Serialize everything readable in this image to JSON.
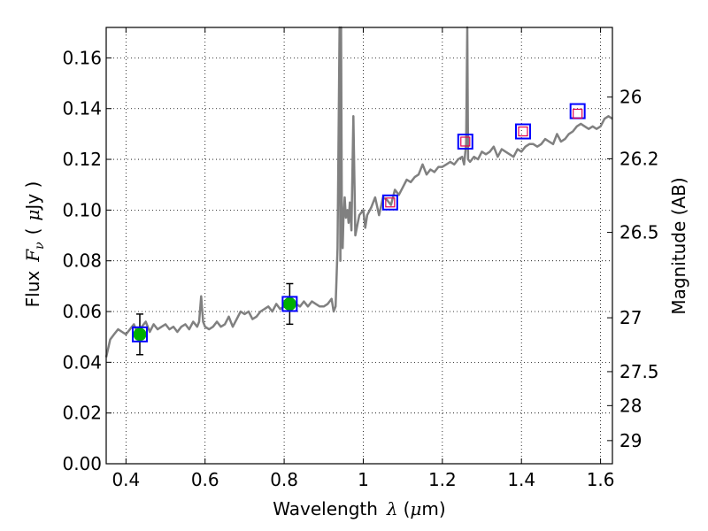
{
  "chart_data": {
    "type": "line",
    "xlabel": "Wavelength",
    "xlabel_symbol": "λ",
    "xlabel_unit_open": "(",
    "xlabel_unit_mu": "μ",
    "xlabel_unit_close": "m)",
    "ylabel": "Flux",
    "ylabel_symbol": "F",
    "ylabel_subscript": "ν",
    "ylabel_unit_open": "(",
    "ylabel_unit_mu": "μ",
    "ylabel_unit_close": "Jy )",
    "y2label": "Magnitude (AB)",
    "xlim": [
      0.35,
      1.63
    ],
    "ylim": [
      0.0,
      0.172
    ],
    "grid": true,
    "colors": {
      "spectrum": "#808080",
      "photometry": "#00b000",
      "model_box": "#0000ff",
      "observed_box": "#e0004e"
    },
    "xticks": [
      {
        "value": 0.4,
        "label": "0.4"
      },
      {
        "value": 0.6,
        "label": "0.6"
      },
      {
        "value": 0.8,
        "label": "0.8"
      },
      {
        "value": 1.0,
        "label": "1"
      },
      {
        "value": 1.2,
        "label": "1.2"
      },
      {
        "value": 1.4,
        "label": "1.4"
      },
      {
        "value": 1.6,
        "label": "1.6"
      }
    ],
    "yticks": [
      {
        "value": 0.0,
        "label": "0.00"
      },
      {
        "value": 0.02,
        "label": "0.02"
      },
      {
        "value": 0.04,
        "label": "0.04"
      },
      {
        "value": 0.06,
        "label": "0.06"
      },
      {
        "value": 0.08,
        "label": "0.08"
      },
      {
        "value": 0.1,
        "label": "0.10"
      },
      {
        "value": 0.12,
        "label": "0.12"
      },
      {
        "value": 0.14,
        "label": "0.14"
      },
      {
        "value": 0.16,
        "label": "0.16"
      }
    ],
    "magnitude_ticks": [
      {
        "value": 26.0,
        "label": "26"
      },
      {
        "value": 26.2,
        "label": "26.2"
      },
      {
        "value": 26.5,
        "label": "26.5"
      },
      {
        "value": 27.0,
        "label": "27"
      },
      {
        "value": 27.5,
        "label": "27.5"
      },
      {
        "value": 28.0,
        "label": "28"
      },
      {
        "value": 29.0,
        "label": "29"
      }
    ],
    "series": [
      {
        "name": "spectrum",
        "x": [
          0.35,
          0.36,
          0.37,
          0.38,
          0.39,
          0.4,
          0.41,
          0.42,
          0.43,
          0.44,
          0.45,
          0.46,
          0.47,
          0.48,
          0.49,
          0.5,
          0.51,
          0.52,
          0.53,
          0.54,
          0.55,
          0.56,
          0.57,
          0.58,
          0.585,
          0.59,
          0.595,
          0.6,
          0.61,
          0.62,
          0.63,
          0.64,
          0.65,
          0.66,
          0.67,
          0.68,
          0.69,
          0.7,
          0.71,
          0.72,
          0.73,
          0.74,
          0.75,
          0.76,
          0.77,
          0.78,
          0.79,
          0.8,
          0.81,
          0.82,
          0.83,
          0.84,
          0.85,
          0.86,
          0.87,
          0.88,
          0.89,
          0.9,
          0.91,
          0.92,
          0.925,
          0.93,
          0.935,
          0.94,
          0.942,
          0.944,
          0.946,
          0.948,
          0.95,
          0.953,
          0.956,
          0.96,
          0.963,
          0.966,
          0.97,
          0.975,
          0.98,
          0.99,
          1.0,
          1.005,
          1.01,
          1.02,
          1.03,
          1.04,
          1.05,
          1.06,
          1.07,
          1.08,
          1.09,
          1.1,
          1.11,
          1.12,
          1.13,
          1.14,
          1.15,
          1.16,
          1.17,
          1.18,
          1.19,
          1.2,
          1.21,
          1.22,
          1.23,
          1.24,
          1.25,
          1.255,
          1.26,
          1.263,
          1.265,
          1.27,
          1.28,
          1.29,
          1.3,
          1.31,
          1.32,
          1.33,
          1.34,
          1.35,
          1.36,
          1.37,
          1.38,
          1.39,
          1.4,
          1.41,
          1.42,
          1.43,
          1.44,
          1.45,
          1.46,
          1.47,
          1.48,
          1.49,
          1.5,
          1.51,
          1.52,
          1.53,
          1.54,
          1.55,
          1.56,
          1.57,
          1.58,
          1.59,
          1.6,
          1.61,
          1.62,
          1.63
        ],
        "y": [
          0.042,
          0.049,
          0.051,
          0.053,
          0.052,
          0.051,
          0.053,
          0.055,
          0.051,
          0.054,
          0.056,
          0.052,
          0.055,
          0.053,
          0.054,
          0.055,
          0.053,
          0.054,
          0.052,
          0.054,
          0.055,
          0.053,
          0.056,
          0.054,
          0.056,
          0.066,
          0.056,
          0.054,
          0.053,
          0.054,
          0.056,
          0.054,
          0.055,
          0.058,
          0.054,
          0.057,
          0.06,
          0.059,
          0.06,
          0.057,
          0.058,
          0.06,
          0.061,
          0.062,
          0.06,
          0.063,
          0.061,
          0.062,
          0.063,
          0.061,
          0.063,
          0.062,
          0.064,
          0.062,
          0.064,
          0.063,
          0.062,
          0.062,
          0.063,
          0.065,
          0.06,
          0.062,
          0.085,
          0.172,
          0.08,
          0.172,
          0.095,
          0.085,
          0.097,
          0.105,
          0.097,
          0.1,
          0.095,
          0.103,
          0.092,
          0.137,
          0.09,
          0.098,
          0.1,
          0.093,
          0.098,
          0.101,
          0.105,
          0.098,
          0.105,
          0.104,
          0.102,
          0.108,
          0.106,
          0.109,
          0.112,
          0.111,
          0.113,
          0.114,
          0.118,
          0.114,
          0.116,
          0.115,
          0.117,
          0.117,
          0.118,
          0.119,
          0.118,
          0.12,
          0.121,
          0.118,
          0.126,
          0.172,
          0.12,
          0.119,
          0.121,
          0.12,
          0.123,
          0.122,
          0.123,
          0.125,
          0.121,
          0.124,
          0.123,
          0.122,
          0.121,
          0.124,
          0.123,
          0.125,
          0.126,
          0.126,
          0.125,
          0.126,
          0.128,
          0.127,
          0.126,
          0.13,
          0.127,
          0.128,
          0.13,
          0.131,
          0.133,
          0.134,
          0.133,
          0.132,
          0.133,
          0.132,
          0.133,
          0.136,
          0.137,
          0.136
        ]
      }
    ],
    "photometry_points": [
      {
        "x": 0.435,
        "y": 0.051,
        "yerr": 0.008
      },
      {
        "x": 0.814,
        "y": 0.063,
        "yerr": 0.008
      }
    ],
    "model_boxes": [
      {
        "x": 0.435,
        "y": 0.051
      },
      {
        "x": 0.814,
        "y": 0.063
      },
      {
        "x": 1.068,
        "y": 0.103
      },
      {
        "x": 1.258,
        "y": 0.127
      },
      {
        "x": 1.404,
        "y": 0.131
      },
      {
        "x": 1.542,
        "y": 0.139
      }
    ],
    "observed_boxes": [
      {
        "x": 1.068,
        "y": 0.103
      },
      {
        "x": 1.258,
        "y": 0.127
      },
      {
        "x": 1.404,
        "y": 0.131
      },
      {
        "x": 1.542,
        "y": 0.138
      }
    ]
  }
}
